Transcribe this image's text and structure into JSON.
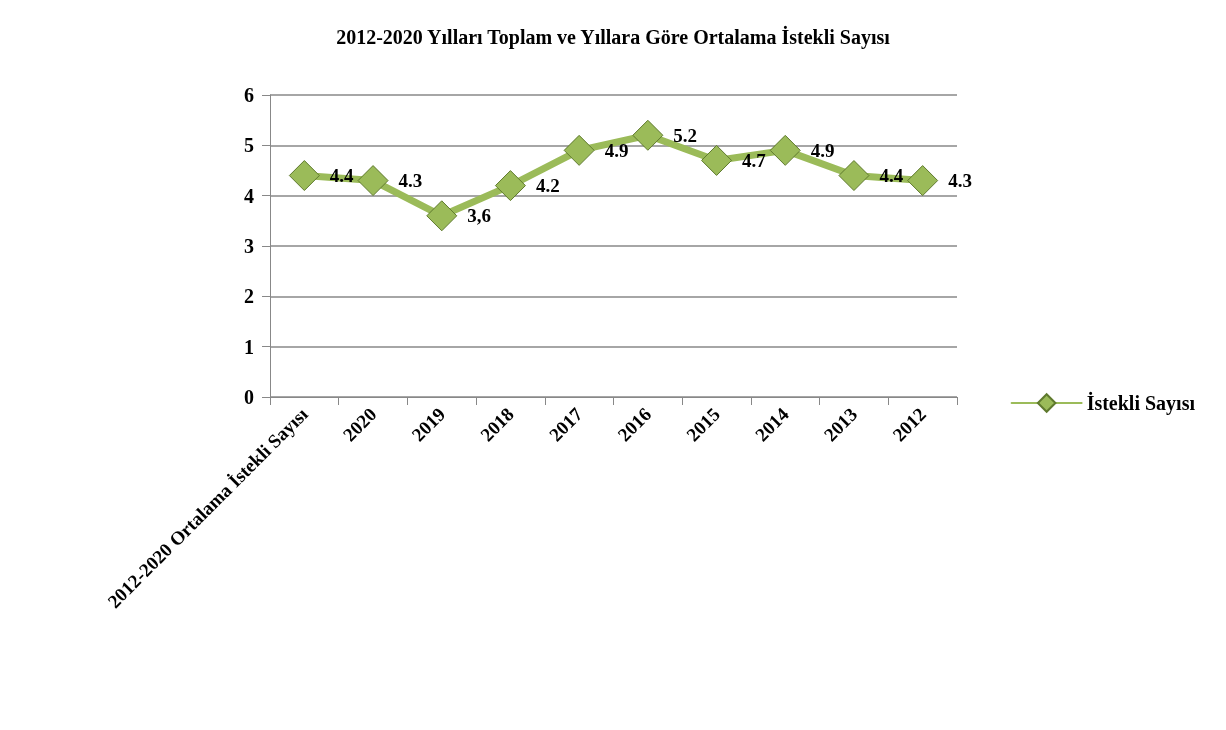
{
  "chart_data": {
    "type": "line",
    "title": "2012-2020 Yılları Toplam ve Yıllara Göre Ortalama İstekli Sayısı",
    "categories": [
      "2012-2020 Ortalama İstekli Sayısı",
      "2020",
      "2019",
      "2018",
      "2017",
      "2016",
      "2015",
      "2014",
      "2013",
      "2012"
    ],
    "series": [
      {
        "name": "İstekli Sayısı",
        "color": "#9bbb59",
        "values": [
          4.4,
          4.3,
          3.6,
          4.2,
          4.9,
          5.2,
          4.7,
          4.9,
          4.4,
          4.3
        ],
        "value_labels": [
          "4.4",
          "4.3",
          "3,6",
          "4.2",
          "4.9",
          "5.2",
          "4.7",
          "4.9",
          "4.4",
          "4.3"
        ]
      }
    ],
    "ylim": [
      0,
      6
    ],
    "yticks": [
      0,
      1,
      2,
      3,
      4,
      5,
      6
    ],
    "grid": "y",
    "legend": "right",
    "marker": "diamond",
    "line_style": "solid"
  }
}
